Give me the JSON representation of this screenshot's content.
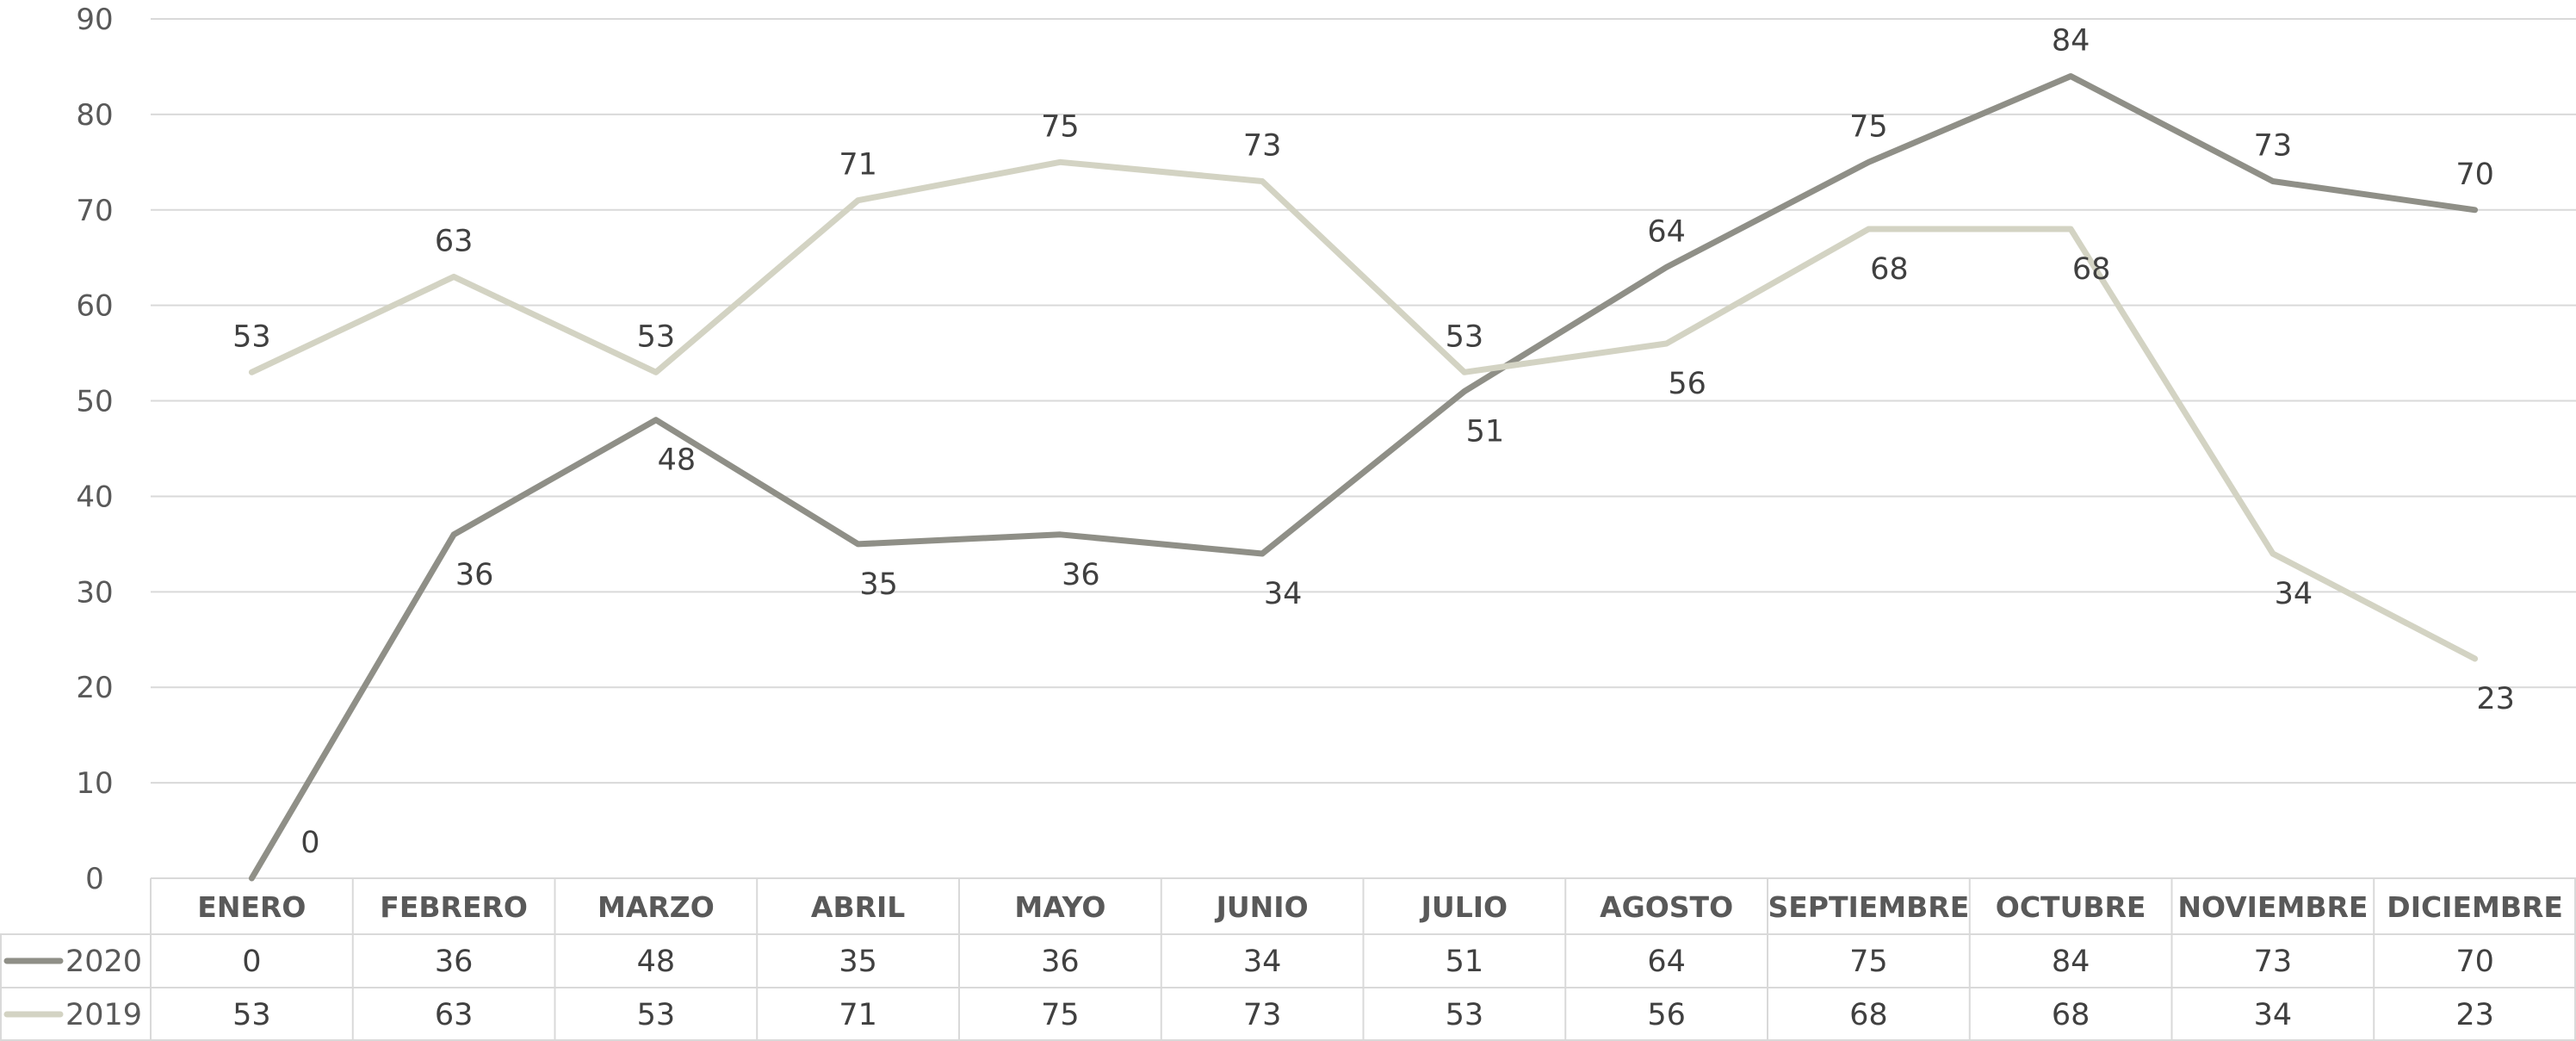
{
  "chart_data": {
    "type": "line",
    "categories": [
      "ENERO",
      "FEBRERO",
      "MARZO",
      "ABRIL",
      "MAYO",
      "JUNIO",
      "JULIO",
      "AGOSTO",
      "SEPTIEMBRE",
      "OCTUBRE",
      "NOVIEMBRE",
      "DICIEMBRE"
    ],
    "series": [
      {
        "name": "2020",
        "color": "#8f8f87",
        "values": [
          0,
          36,
          48,
          35,
          36,
          34,
          51,
          64,
          75,
          84,
          73,
          70
        ]
      },
      {
        "name": "2019",
        "color": "#d3d3c3",
        "values": [
          53,
          63,
          53,
          71,
          75,
          73,
          53,
          56,
          68,
          68,
          34,
          23
        ]
      }
    ],
    "y_ticks": [
      "0",
      "10",
      "20",
      "30",
      "40",
      "50",
      "60",
      "70",
      "80",
      "90"
    ],
    "ylim": [
      0,
      90
    ],
    "grid": true,
    "data_table": true
  }
}
